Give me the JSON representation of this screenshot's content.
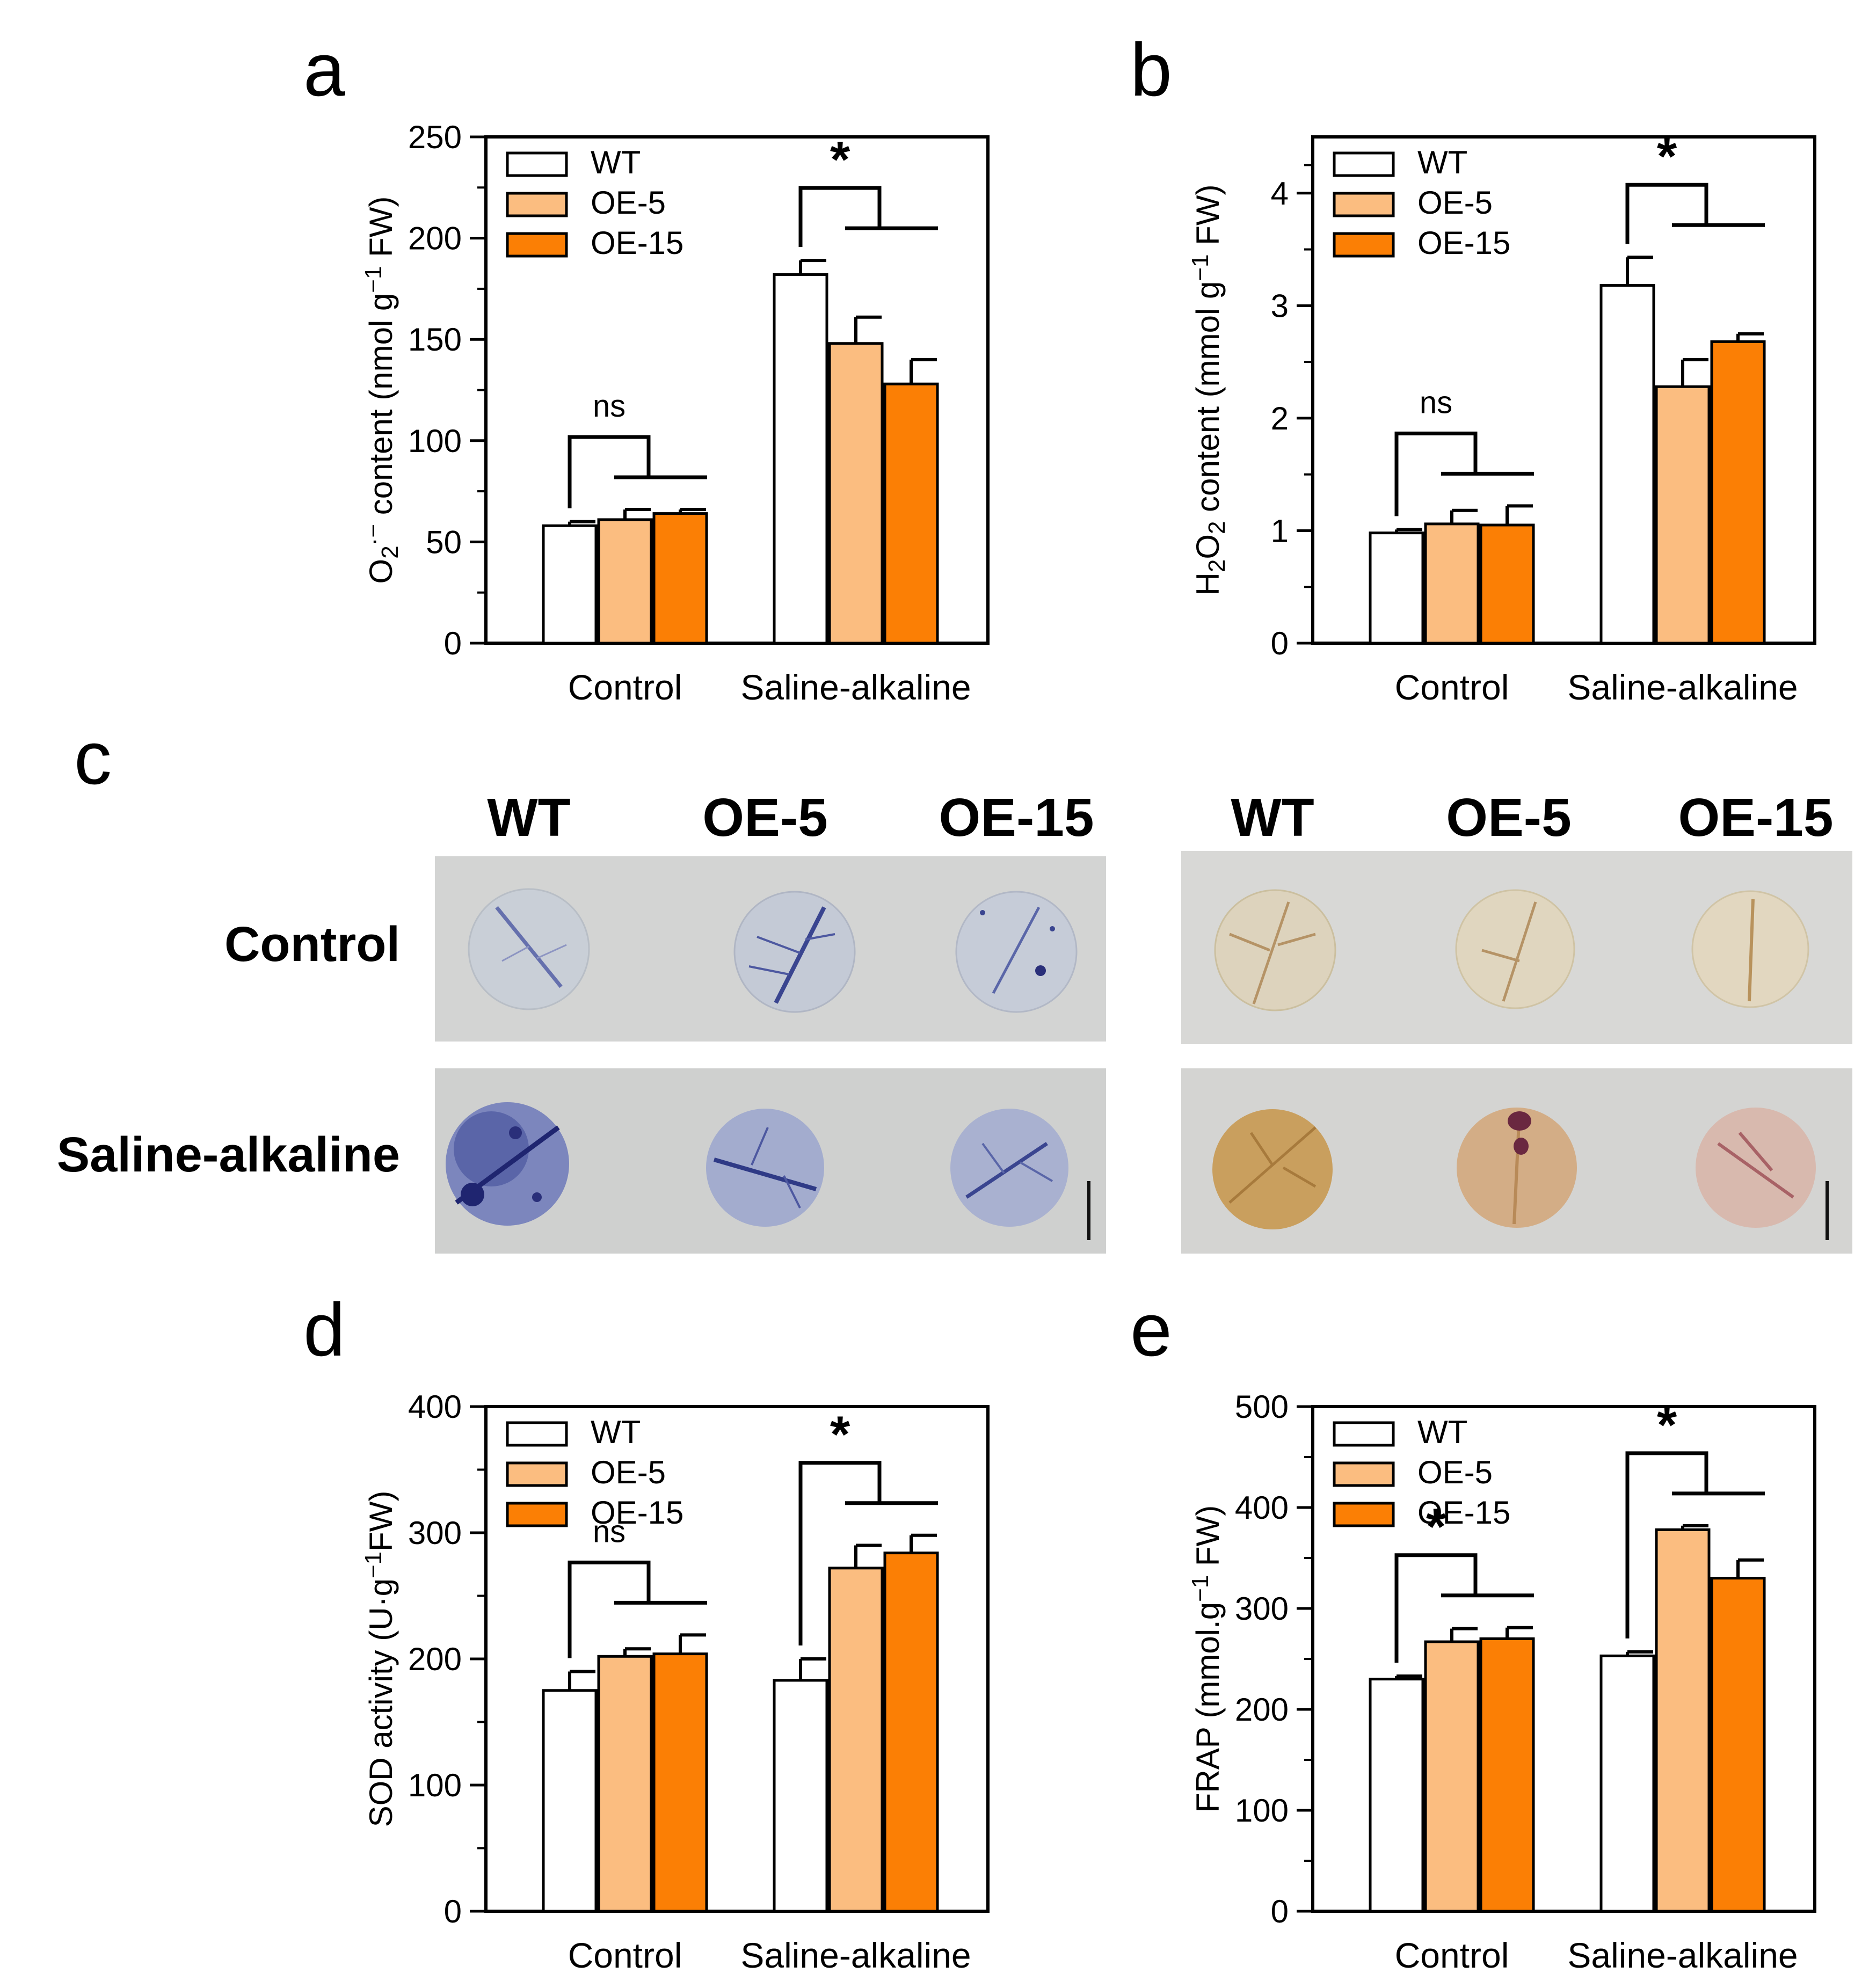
{
  "panels": {
    "a": "a",
    "b": "b",
    "c": "c",
    "d": "d",
    "e": "e"
  },
  "colors": {
    "WT": "#ffffff",
    "OE-5": "#fbbd80",
    "OE-15": "#fb7f05",
    "ink": "#000000"
  },
  "chart_data": [
    {
      "id": "a",
      "type": "bar",
      "categories": [
        "Control",
        "Saline-alkaline"
      ],
      "series": [
        {
          "name": "WT",
          "values": [
            58,
            182
          ],
          "errors": [
            2,
            7
          ]
        },
        {
          "name": "OE-5",
          "values": [
            61,
            148
          ],
          "errors": [
            5,
            13
          ]
        },
        {
          "name": "OE-15",
          "values": [
            64,
            128
          ],
          "errors": [
            2,
            12
          ]
        }
      ],
      "ylabel_parts": [
        "O",
        "2",
        "·−",
        " content (nmol g",
        "−1",
        " FW)"
      ],
      "ylim": [
        0,
        250
      ],
      "yticks": [
        "0",
        "50",
        "100",
        "150",
        "200",
        "250"
      ],
      "legend": [
        "WT",
        "OE-5",
        "OE-15"
      ],
      "significance": [
        "ns",
        "*"
      ]
    },
    {
      "id": "b",
      "type": "bar",
      "categories": [
        "Control",
        "Saline-alkaline"
      ],
      "series": [
        {
          "name": "WT",
          "values": [
            0.98,
            3.18
          ],
          "errors": [
            0.03,
            0.25
          ]
        },
        {
          "name": "OE-5",
          "values": [
            1.06,
            2.28
          ],
          "errors": [
            0.12,
            0.24
          ]
        },
        {
          "name": "OE-15",
          "values": [
            1.05,
            2.68
          ],
          "errors": [
            0.17,
            0.07
          ]
        }
      ],
      "ylabel_parts": [
        "H",
        "2",
        "O",
        "2",
        " content (mmol g",
        "−1",
        " FW)"
      ],
      "ylim": [
        0,
        4.5
      ],
      "yticks": [
        "0",
        "1",
        "2",
        "3",
        "4"
      ],
      "legend": [
        "WT",
        "OE-5",
        "OE-15"
      ],
      "significance": [
        "ns",
        "*"
      ]
    },
    {
      "id": "d",
      "type": "bar",
      "categories": [
        "Control",
        "Saline-alkaline"
      ],
      "series": [
        {
          "name": "WT",
          "values": [
            175,
            183
          ],
          "errors": [
            15,
            17
          ]
        },
        {
          "name": "OE-5",
          "values": [
            202,
            272
          ],
          "errors": [
            6,
            18
          ]
        },
        {
          "name": "OE-15",
          "values": [
            204,
            284
          ],
          "errors": [
            15,
            14
          ]
        }
      ],
      "ylabel_parts": [
        "SOD activity (U·g",
        "−1",
        "FW)"
      ],
      "ylim": [
        0,
        400
      ],
      "yticks": [
        "0",
        "100",
        "200",
        "300",
        "400"
      ],
      "legend": [
        "WT",
        "OE-5",
        "OE-15"
      ],
      "significance": [
        "ns",
        "*"
      ]
    },
    {
      "id": "e",
      "type": "bar",
      "categories": [
        "Control",
        "Saline-alkaline"
      ],
      "series": [
        {
          "name": "WT",
          "values": [
            230,
            253
          ],
          "errors": [
            3,
            4
          ]
        },
        {
          "name": "OE-5",
          "values": [
            267,
            378
          ],
          "errors": [
            13,
            4
          ]
        },
        {
          "name": "OE-15",
          "values": [
            270,
            330
          ],
          "errors": [
            11,
            18
          ]
        }
      ],
      "ylabel_parts": [
        "FRAP (mmol.g",
        "−1",
        " FW)"
      ],
      "ylim": [
        0,
        500
      ],
      "yticks": [
        "0",
        "100",
        "200",
        "300",
        "400",
        "500"
      ],
      "legend": [
        "WT",
        "OE-5",
        "OE-15"
      ],
      "significance": [
        "*",
        "*"
      ]
    }
  ],
  "photos": {
    "columns": [
      "WT",
      "OE-5",
      "OE-15"
    ],
    "rows": [
      "Control",
      "Saline-alkaline"
    ],
    "nbt_colors": {
      "background": "#d3d4d3",
      "leaf": "#c9cfd7",
      "stain_light": "#5a66a8",
      "stain_dark": "#2a2f7a"
    },
    "dab_colors": {
      "background": "#d8d8d6",
      "leaf_control": "#ddd3bd",
      "leaf_stress_wt": "#c99f5e",
      "leaf_stress_oe5": "#d3ad86",
      "leaf_stress_oe15": "#d8b9ae",
      "vein": "#b59366",
      "stain_purple": "#6a2840",
      "stain_pink": "#a86266"
    }
  }
}
